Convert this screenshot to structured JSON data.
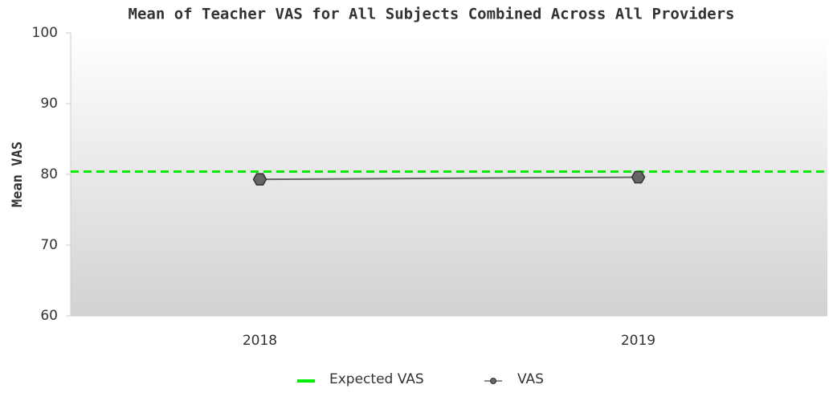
{
  "chart_data": {
    "type": "line",
    "title": "Mean of Teacher VAS for All Subjects Combined Across All Providers",
    "y_label": "Mean VAS",
    "categories": [
      "2018",
      "2019"
    ],
    "series": [
      {
        "name": "VAS",
        "color": "#666666",
        "values": [
          79.3,
          79.6
        ]
      }
    ],
    "reference_line": {
      "name": "Expected VAS",
      "value": 80.4,
      "color": "#00ee00"
    },
    "ylim": [
      60,
      100
    ],
    "yticks": [
      60,
      70,
      80,
      90,
      100
    ],
    "legend": "bottom"
  }
}
